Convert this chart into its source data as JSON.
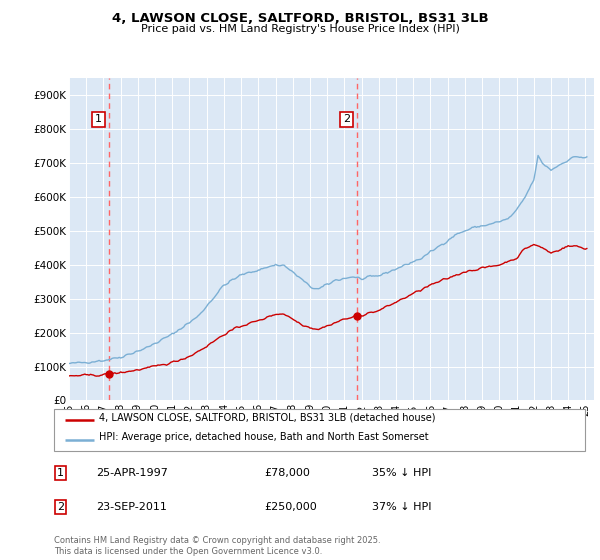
{
  "title_line1": "4, LAWSON CLOSE, SALTFORD, BRISTOL, BS31 3LB",
  "title_line2": "Price paid vs. HM Land Registry's House Price Index (HPI)",
  "xlim_start": 1995.0,
  "xlim_end": 2025.5,
  "ylim_min": 0,
  "ylim_max": 950000,
  "yticks": [
    0,
    100000,
    200000,
    300000,
    400000,
    500000,
    600000,
    700000,
    800000,
    900000
  ],
  "ytick_labels": [
    "£0",
    "£100K",
    "£200K",
    "£300K",
    "£400K",
    "£500K",
    "£600K",
    "£700K",
    "£800K",
    "£900K"
  ],
  "xtick_years": [
    1995,
    1996,
    1997,
    1998,
    1999,
    2000,
    2001,
    2002,
    2003,
    2004,
    2005,
    2006,
    2007,
    2008,
    2009,
    2010,
    2011,
    2012,
    2013,
    2014,
    2015,
    2016,
    2017,
    2018,
    2019,
    2020,
    2021,
    2022,
    2023,
    2024,
    2025
  ],
  "sale1_x": 1997.31,
  "sale1_y": 78000,
  "sale1_date": "25-APR-1997",
  "sale1_price": "£78,000",
  "sale1_hpi": "35% ↓ HPI",
  "sale2_x": 2011.73,
  "sale2_y": 250000,
  "sale2_date": "23-SEP-2011",
  "sale2_price": "£250,000",
  "sale2_hpi": "37% ↓ HPI",
  "line_color_sales": "#cc0000",
  "line_color_hpi": "#7bafd4",
  "background_color": "#dce8f5",
  "grid_color": "#ffffff",
  "legend_label_sales": "4, LAWSON CLOSE, SALTFORD, BRISTOL, BS31 3LB (detached house)",
  "legend_label_hpi": "HPI: Average price, detached house, Bath and North East Somerset",
  "footer_text": "Contains HM Land Registry data © Crown copyright and database right 2025.\nThis data is licensed under the Open Government Licence v3.0.",
  "vline_color": "#ff6666",
  "label_box_edge": "#cc0000"
}
